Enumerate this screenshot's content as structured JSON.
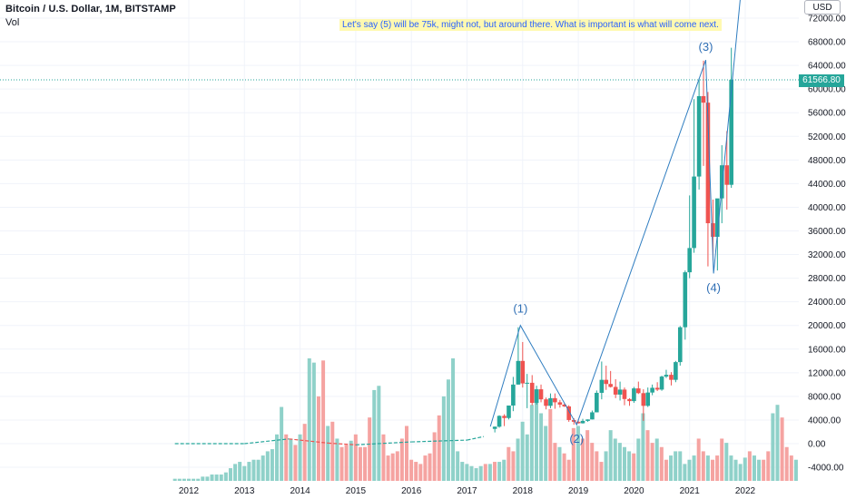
{
  "header": {
    "title": "Bitcoin / U.S. Dollar, 1M, BITSTAMP",
    "indicator": "Vol"
  },
  "annotation": "Let's say (5) will be 75k, might not, but around there. What is important is what will come next.",
  "currency": "USD",
  "last_price_label": "61566.80",
  "colors": {
    "up": "#26a69a",
    "down": "#ef5350",
    "vol_up": "#8fd1c9",
    "vol_down": "#f5a3a1",
    "wave_line": "#2f7dc0",
    "price_line": "#26a69a"
  },
  "chart_data": {
    "type": "candlestick",
    "timeframe": "1M",
    "x_axis": {
      "ticks": [
        "2012",
        "2013",
        "2014",
        "2015",
        "2016",
        "2017",
        "2018",
        "2019",
        "2020",
        "2021",
        "2022"
      ]
    },
    "y_axis": {
      "range": [
        -6000,
        76000
      ],
      "ticks": [
        "72000.00",
        "68000.00",
        "64000.00",
        "60000.00",
        "56000.00",
        "52000.00",
        "48000.00",
        "44000.00",
        "40000.00",
        "36000.00",
        "32000.00",
        "28000.00",
        "24000.00",
        "20000.00",
        "16000.00",
        "12000.00",
        "8000.00",
        "4000.00",
        "0.00",
        "-4000.00"
      ]
    },
    "last_price": 61566.8,
    "candles": [
      {
        "t": 2017.5,
        "o": 2500,
        "h": 2900,
        "l": 1900,
        "c": 2870
      },
      {
        "t": 2017.58,
        "o": 2870,
        "h": 4800,
        "l": 2700,
        "c": 4700
      },
      {
        "t": 2017.67,
        "o": 4700,
        "h": 4980,
        "l": 2970,
        "c": 4340
      },
      {
        "t": 2017.75,
        "o": 4340,
        "h": 6450,
        "l": 4100,
        "c": 6450
      },
      {
        "t": 2017.83,
        "o": 6450,
        "h": 11300,
        "l": 5500,
        "c": 10000
      },
      {
        "t": 2017.92,
        "o": 10000,
        "h": 19700,
        "l": 10000,
        "c": 14000
      },
      {
        "t": 2018.0,
        "o": 14000,
        "h": 17200,
        "l": 9500,
        "c": 10200
      },
      {
        "t": 2018.08,
        "o": 10200,
        "h": 11800,
        "l": 6000,
        "c": 10300
      },
      {
        "t": 2018.17,
        "o": 10300,
        "h": 11600,
        "l": 6500,
        "c": 6900
      },
      {
        "t": 2018.25,
        "o": 6900,
        "h": 9800,
        "l": 6600,
        "c": 9200
      },
      {
        "t": 2018.33,
        "o": 9200,
        "h": 10000,
        "l": 7000,
        "c": 7500
      },
      {
        "t": 2018.42,
        "o": 7500,
        "h": 7800,
        "l": 5800,
        "c": 6400
      },
      {
        "t": 2018.5,
        "o": 6400,
        "h": 8500,
        "l": 6000,
        "c": 7700
      },
      {
        "t": 2018.58,
        "o": 7700,
        "h": 8500,
        "l": 5900,
        "c": 7000
      },
      {
        "t": 2018.67,
        "o": 7000,
        "h": 7400,
        "l": 6100,
        "c": 6600
      },
      {
        "t": 2018.75,
        "o": 6600,
        "h": 6800,
        "l": 6200,
        "c": 6300
      },
      {
        "t": 2018.83,
        "o": 6300,
        "h": 6500,
        "l": 3700,
        "c": 4000
      },
      {
        "t": 2018.92,
        "o": 4000,
        "h": 4300,
        "l": 3200,
        "c": 3700
      },
      {
        "t": 2019.0,
        "o": 3700,
        "h": 4100,
        "l": 3400,
        "c": 3450
      },
      {
        "t": 2019.08,
        "o": 3450,
        "h": 4200,
        "l": 3400,
        "c": 3850
      },
      {
        "t": 2019.17,
        "o": 3850,
        "h": 4100,
        "l": 3700,
        "c": 4100
      },
      {
        "t": 2019.25,
        "o": 4100,
        "h": 5600,
        "l": 4100,
        "c": 5300
      },
      {
        "t": 2019.33,
        "o": 5300,
        "h": 9000,
        "l": 5300,
        "c": 8600
      },
      {
        "t": 2019.42,
        "o": 8600,
        "h": 13900,
        "l": 7500,
        "c": 10800
      },
      {
        "t": 2019.5,
        "o": 10800,
        "h": 13200,
        "l": 9100,
        "c": 10100
      },
      {
        "t": 2019.58,
        "o": 10100,
        "h": 12300,
        "l": 9500,
        "c": 9600
      },
      {
        "t": 2019.67,
        "o": 9600,
        "h": 10900,
        "l": 7700,
        "c": 8300
      },
      {
        "t": 2019.75,
        "o": 8300,
        "h": 10500,
        "l": 7300,
        "c": 9150
      },
      {
        "t": 2019.83,
        "o": 9150,
        "h": 9500,
        "l": 6500,
        "c": 7550
      },
      {
        "t": 2019.92,
        "o": 7550,
        "h": 7700,
        "l": 6400,
        "c": 7200
      },
      {
        "t": 2020.0,
        "o": 7200,
        "h": 9600,
        "l": 6900,
        "c": 9350
      },
      {
        "t": 2020.08,
        "o": 9350,
        "h": 10500,
        "l": 8400,
        "c": 8550
      },
      {
        "t": 2020.17,
        "o": 8550,
        "h": 9200,
        "l": 3850,
        "c": 6400
      },
      {
        "t": 2020.25,
        "o": 6400,
        "h": 9500,
        "l": 6200,
        "c": 8650
      },
      {
        "t": 2020.33,
        "o": 8650,
        "h": 10000,
        "l": 8200,
        "c": 9450
      },
      {
        "t": 2020.42,
        "o": 9450,
        "h": 10400,
        "l": 8900,
        "c": 9150
      },
      {
        "t": 2020.5,
        "o": 9150,
        "h": 11500,
        "l": 8950,
        "c": 11350
      },
      {
        "t": 2020.58,
        "o": 11350,
        "h": 12500,
        "l": 11100,
        "c": 11650
      },
      {
        "t": 2020.67,
        "o": 11650,
        "h": 12100,
        "l": 9850,
        "c": 10800
      },
      {
        "t": 2020.75,
        "o": 10800,
        "h": 14000,
        "l": 10400,
        "c": 13800
      },
      {
        "t": 2020.83,
        "o": 13800,
        "h": 19900,
        "l": 13200,
        "c": 19700
      },
      {
        "t": 2020.92,
        "o": 19700,
        "h": 29300,
        "l": 17600,
        "c": 29000
      },
      {
        "t": 2021.0,
        "o": 29000,
        "h": 42000,
        "l": 28000,
        "c": 33100
      },
      {
        "t": 2021.08,
        "o": 33100,
        "h": 58300,
        "l": 32300,
        "c": 45200
      },
      {
        "t": 2021.17,
        "o": 45200,
        "h": 61800,
        "l": 43000,
        "c": 58800
      },
      {
        "t": 2021.25,
        "o": 58800,
        "h": 64800,
        "l": 47000,
        "c": 57700
      },
      {
        "t": 2021.33,
        "o": 57700,
        "h": 59500,
        "l": 30000,
        "c": 37300
      },
      {
        "t": 2021.42,
        "o": 37300,
        "h": 41300,
        "l": 31000,
        "c": 35000
      },
      {
        "t": 2021.5,
        "o": 35000,
        "h": 41400,
        "l": 29300,
        "c": 41500
      },
      {
        "t": 2021.58,
        "o": 41500,
        "h": 50500,
        "l": 37300,
        "c": 47100
      },
      {
        "t": 2021.67,
        "o": 47100,
        "h": 52900,
        "l": 39600,
        "c": 43800
      },
      {
        "t": 2021.75,
        "o": 43800,
        "h": 67000,
        "l": 43300,
        "c": 61566.8
      }
    ],
    "volume": {
      "start": 2011.75,
      "step": 0.0833,
      "values": [
        1,
        1,
        1,
        1,
        1,
        1,
        2,
        2,
        3,
        3,
        3,
        4,
        6,
        8,
        9,
        7,
        9,
        10,
        10,
        12,
        14,
        15,
        22,
        35,
        22,
        20,
        17,
        22,
        27,
        58,
        56,
        40,
        57,
        26,
        28,
        20,
        16,
        17,
        19,
        22,
        16,
        16,
        30,
        43,
        45,
        22,
        12,
        13,
        14,
        20,
        26,
        10,
        9,
        8,
        12,
        13,
        23,
        31,
        40,
        48,
        58,
        14,
        9,
        8,
        7,
        6,
        7,
        8,
        8,
        9,
        9,
        10,
        16,
        14,
        20,
        28,
        22,
        36,
        38,
        32,
        26,
        34,
        18,
        16,
        13,
        10,
        25,
        26,
        20,
        24,
        18,
        14,
        9,
        14,
        24,
        20,
        18,
        16,
        14,
        13,
        20,
        32,
        24,
        18,
        20,
        16,
        10,
        12,
        14,
        14,
        8,
        10,
        12,
        20,
        14,
        12,
        10,
        12,
        20,
        18,
        12,
        10,
        8,
        11,
        14,
        12,
        10,
        10,
        14,
        32,
        36,
        30,
        16,
        12,
        10,
        10,
        10
      ],
      "up_flags": [
        1,
        1,
        1,
        1,
        1,
        1,
        1,
        1,
        1,
        1,
        1,
        1,
        1,
        1,
        1,
        1,
        1,
        1,
        1,
        1,
        1,
        1,
        1,
        1,
        0,
        1,
        0,
        1,
        0,
        1,
        1,
        0,
        0,
        1,
        0,
        1,
        0,
        0,
        1,
        0,
        0,
        0,
        0,
        1,
        1,
        0,
        0,
        0,
        0,
        0,
        0,
        0,
        0,
        0,
        0,
        0,
        0,
        0,
        1,
        1,
        1,
        1,
        1,
        1,
        1,
        1,
        1,
        0,
        1,
        0,
        1,
        1,
        0,
        0,
        1,
        1,
        1,
        1,
        1,
        1,
        1,
        0,
        0,
        1,
        0,
        0,
        0,
        1,
        0,
        0,
        0,
        0,
        0,
        1,
        1,
        1,
        1,
        1,
        1,
        0,
        1,
        1,
        0,
        0,
        1,
        0,
        0,
        1,
        1,
        1,
        1,
        1,
        1,
        0,
        0,
        1,
        0,
        0,
        0,
        1,
        1,
        1,
        1,
        1,
        0,
        1,
        1,
        0,
        0,
        1,
        1,
        0,
        0,
        0,
        1,
        1,
        1
      ]
    },
    "baseline": {
      "from": 2011.75,
      "to": 2017.3,
      "value": 0,
      "points": [
        [
          2011.75,
          0
        ],
        [
          2013.0,
          0
        ],
        [
          2013.8,
          800
        ],
        [
          2014.5,
          100
        ],
        [
          2015.0,
          -200
        ],
        [
          2016.0,
          300
        ],
        [
          2017.0,
          600
        ],
        [
          2017.3,
          1200
        ]
      ]
    },
    "waves": [
      {
        "label": "(1)",
        "t": 2017.96,
        "v": 20000
      },
      {
        "label": "(2)",
        "t": 2018.97,
        "v": 3200
      },
      {
        "label": "(3)",
        "t": 2021.29,
        "v": 64900
      },
      {
        "label": "(4)",
        "t": 2021.43,
        "v": 28800
      }
    ],
    "wave_lines": [
      [
        [
          2017.42,
          2900
        ],
        [
          2017.96,
          20000
        ],
        [
          2018.97,
          3200
        ],
        [
          2021.29,
          64900
        ],
        [
          2021.43,
          28800
        ],
        [
          2021.96,
          80000
        ]
      ]
    ]
  }
}
